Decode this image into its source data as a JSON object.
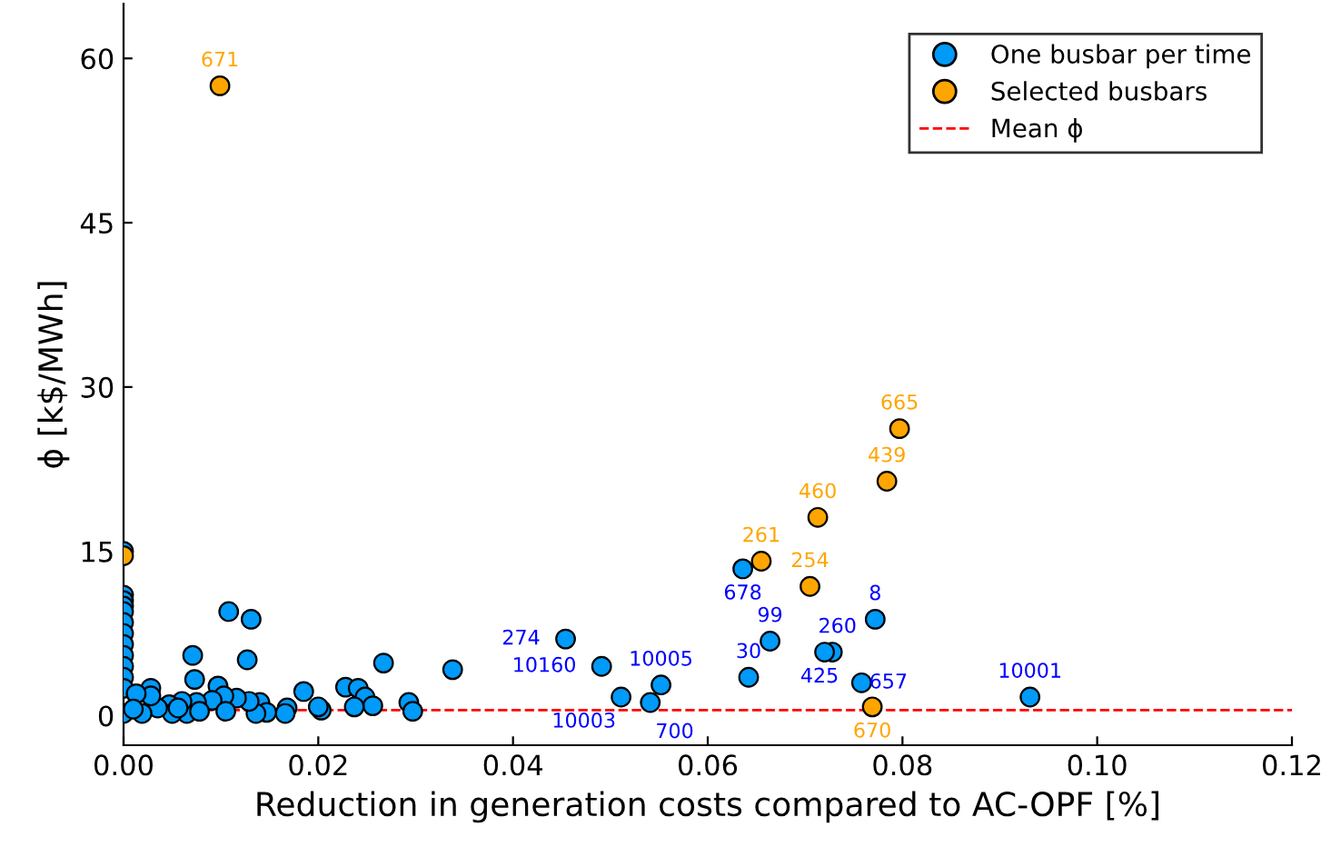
{
  "chart_data": {
    "type": "scatter",
    "xlabel": "Reduction in generation costs compared to AC-OPF [%]",
    "ylabel": "ϕ [k$/MWh]",
    "xlim": [
      0,
      0.12
    ],
    "ylim": [
      -2.7,
      65
    ],
    "xticks": [
      {
        "value": 0,
        "label": "0.00"
      },
      {
        "value": 0.02,
        "label": "0.02"
      },
      {
        "value": 0.04,
        "label": "0.04"
      },
      {
        "value": 0.06,
        "label": "0.06"
      },
      {
        "value": 0.08,
        "label": "0.08"
      },
      {
        "value": 0.1,
        "label": "0.10"
      },
      {
        "value": 0.12,
        "label": "0.12"
      }
    ],
    "yticks": [
      0,
      15,
      30,
      45,
      60
    ],
    "grid": false,
    "legend": "top right",
    "marker": "circle",
    "series": [
      {
        "name": "One busbar per time",
        "color": "#009af9",
        "x": [
          0,
          0,
          0,
          0,
          0,
          0,
          0,
          0,
          0,
          0,
          0,
          0,
          0,
          0.0108,
          0.0131,
          0.0071,
          0.0127,
          0.0267,
          0.0338,
          0.0073,
          0.0097,
          0.0228,
          0.0241,
          0.0185,
          0.0028,
          0.0248,
          0.0293,
          0.0297,
          0.0256,
          0.0237,
          0.0203,
          0.02,
          0.0168,
          0.0166,
          0.014,
          0.0147,
          0.0136,
          0.0129,
          0.0116,
          0.0103,
          0.0091,
          0.0105,
          0.0075,
          0.0065,
          0.006,
          0.0047,
          0.005,
          0.0035,
          0.0019,
          0.0028,
          0.0013,
          0.001,
          0.0078,
          0.0056,
          0.0454,
          0.0491,
          0.0552,
          0.0511,
          0.0541,
          0.0642,
          0.0636,
          0.0664,
          0.0728,
          0.072,
          0.0772,
          0.0758,
          0.0931
        ],
        "values": [
          15,
          11,
          10.5,
          10,
          9.5,
          8.5,
          7.5,
          6.5,
          5.5,
          4.5,
          3.5,
          2.5,
          0.2,
          9.5,
          8.8,
          5.5,
          5.1,
          4.8,
          4.2,
          3.3,
          2.7,
          2.6,
          2.5,
          2.2,
          2.5,
          1.7,
          1.2,
          0.4,
          0.9,
          0.8,
          0.5,
          0.8,
          0.7,
          0.2,
          1.2,
          0.3,
          0.2,
          1.3,
          1.6,
          1.8,
          1.4,
          0.4,
          1.2,
          0.2,
          1.3,
          1.0,
          0.2,
          0.7,
          0.2,
          1.8,
          2.0,
          0.6,
          0.4,
          0.7,
          7.0,
          4.5,
          2.8,
          1.7,
          1.2,
          3.5,
          13.4,
          6.8,
          5.8,
          5.8,
          8.8,
          3.0,
          1.7
        ]
      },
      {
        "name": "Selected busbars",
        "color": "#ffa500",
        "x": [
          0,
          0.0099,
          0.0655,
          0.0705,
          0.0713,
          0.0784,
          0.0797,
          0.0769
        ],
        "values": [
          14.6,
          57.5,
          14.1,
          11.8,
          18.1,
          21.4,
          26.2,
          0.8
        ]
      }
    ],
    "ref_lines": [
      {
        "axis": "y",
        "value": 0.5,
        "label": "Mean ϕ",
        "color": "#ff0000",
        "line_style": "dashed"
      }
    ],
    "annotations": [
      {
        "text": "274",
        "x": 0.0454,
        "y": 7.0
      },
      {
        "text": "10160",
        "x": 0.0491,
        "y": 4.5
      },
      {
        "text": "10005",
        "x": 0.0552,
        "y": 2.8
      },
      {
        "text": "10003",
        "x": 0.0511,
        "y": 1.7
      },
      {
        "text": "700",
        "x": 0.0541,
        "y": 1.2
      },
      {
        "text": "30",
        "x": 0.0642,
        "y": 3.5
      },
      {
        "text": "678",
        "x": 0.0636,
        "y": 13.4
      },
      {
        "text": "99",
        "x": 0.0664,
        "y": 6.8
      },
      {
        "text": "260",
        "x": 0.0728,
        "y": 5.8
      },
      {
        "text": "425",
        "x": 0.072,
        "y": 5.8
      },
      {
        "text": "8",
        "x": 0.0772,
        "y": 8.8
      },
      {
        "text": "657",
        "x": 0.0758,
        "y": 3.0
      },
      {
        "text": "10001",
        "x": 0.0931,
        "y": 1.7
      },
      {
        "text": "671",
        "x": 0.0099,
        "y": 57.5
      },
      {
        "text": "261",
        "x": 0.0655,
        "y": 14.1
      },
      {
        "text": "254",
        "x": 0.0705,
        "y": 11.8
      },
      {
        "text": "460",
        "x": 0.0713,
        "y": 18.1
      },
      {
        "text": "439",
        "x": 0.0784,
        "y": 21.4
      },
      {
        "text": "665",
        "x": 0.0797,
        "y": 26.2
      },
      {
        "text": "670",
        "x": 0.0769,
        "y": 0.8
      }
    ]
  }
}
